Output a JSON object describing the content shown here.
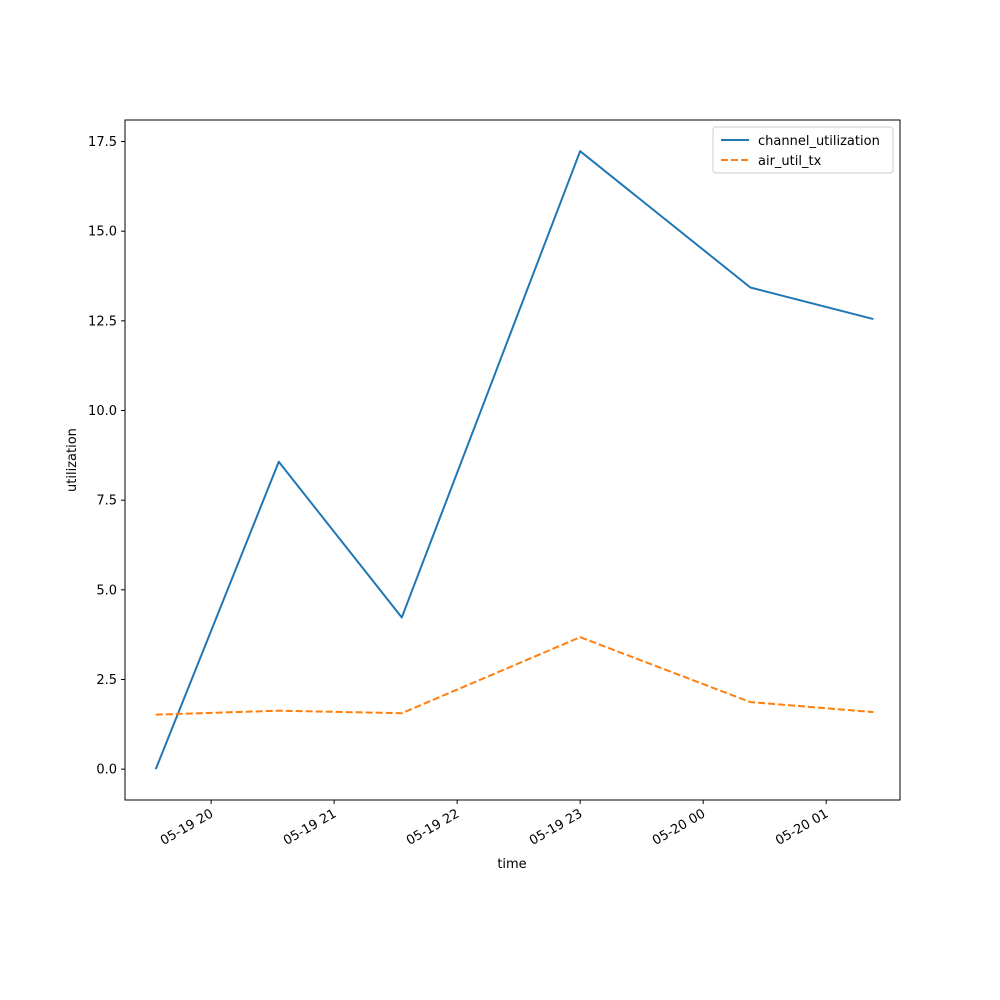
{
  "chart_data": {
    "type": "line",
    "title": "",
    "xlabel": "time",
    "ylabel": "utilization",
    "x": [
      "05-19 19:33",
      "05-19 20:33",
      "05-19 21:33",
      "05-19 23:00",
      "05-20 00:23",
      "05-20 01:23"
    ],
    "x_axis_type": "datetime",
    "xlim": [
      "05-19 19:18",
      "05-20 01:36"
    ],
    "ylim": [
      -0.86,
      18.1
    ],
    "x_ticks": [
      "05-19 20:00",
      "05-19 21:00",
      "05-19 22:00",
      "05-19 23:00",
      "05-20 00:00",
      "05-20 01:00"
    ],
    "x_tick_labels": [
      "05-19 20",
      "05-19 21",
      "05-19 22",
      "05-19 23",
      "05-20 00",
      "05-20 01"
    ],
    "y_ticks": [
      0.0,
      2.5,
      5.0,
      7.5,
      10.0,
      12.5,
      15.0,
      17.5
    ],
    "y_tick_labels": [
      "0.0",
      "2.5",
      "5.0",
      "7.5",
      "10.0",
      "12.5",
      "15.0",
      "17.5"
    ],
    "grid": false,
    "legend_position": "top-right",
    "series": [
      {
        "name": "channel_utilization",
        "values": [
          0.0,
          8.57,
          4.23,
          17.23,
          13.43,
          12.55
        ],
        "color": "#1f77b4",
        "style": "solid"
      },
      {
        "name": "air_util_tx",
        "values": [
          1.52,
          1.63,
          1.56,
          3.68,
          1.87,
          1.59
        ],
        "color": "#ff7f0e",
        "style": "dashed"
      }
    ]
  }
}
